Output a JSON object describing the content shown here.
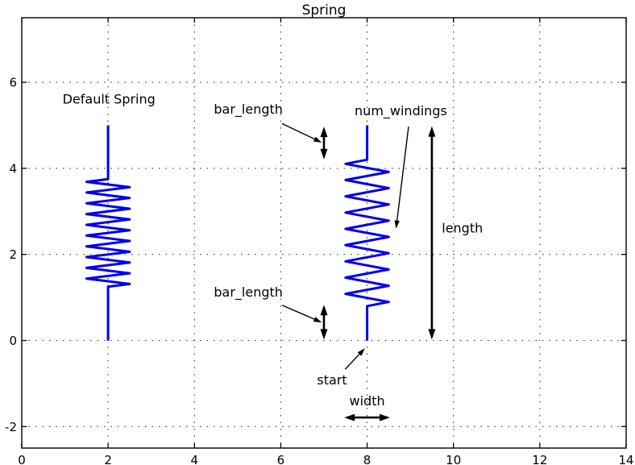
{
  "chart_data": {
    "type": "line",
    "title": "Spring",
    "xlabel": "",
    "ylabel": "",
    "xlim": [
      0,
      14
    ],
    "ylim": [
      -2.5,
      7.5
    ],
    "xtick_values": [
      0,
      2,
      4,
      6,
      8,
      10,
      12,
      14
    ],
    "xtick_labels": [
      "0",
      "2",
      "4",
      "6",
      "8",
      "10",
      "12",
      "14"
    ],
    "ytick_values": [
      -2,
      0,
      2,
      4,
      6
    ],
    "ytick_labels": [
      "-2",
      "0",
      "2",
      "4",
      "6"
    ],
    "grid": "dotted",
    "legend": "none",
    "line_color": "#0000ee",
    "axis_color": "#000000",
    "grid_color": "#333333",
    "springs": [
      {
        "name": "default-spring",
        "start": [
          2,
          0
        ],
        "length": 5,
        "bar_length": 1.25,
        "num_windings": 10,
        "width": 1.0
      },
      {
        "name": "annotated-spring",
        "start": [
          8,
          0
        ],
        "length": 5,
        "bar_length": 0.8,
        "num_windings": 9,
        "width": 1.0
      }
    ],
    "labels": [
      {
        "name": "default-spring-label",
        "text": "Default Spring",
        "x": 2.02,
        "y": 5.51,
        "anchor": "middle"
      },
      {
        "name": "bar-length-top-label",
        "text": "bar_length",
        "x": 4.45,
        "y": 5.27,
        "anchor": "start"
      },
      {
        "name": "num-windings-label",
        "text": "num_windings",
        "x": 7.71,
        "y": 5.23,
        "anchor": "start"
      },
      {
        "name": "length-label",
        "text": "length",
        "x": 9.73,
        "y": 2.51,
        "anchor": "start"
      },
      {
        "name": "bar-length-bottom-label",
        "text": "bar_length",
        "x": 4.45,
        "y": 1.02,
        "anchor": "start"
      },
      {
        "name": "start-label",
        "text": "start",
        "x": 6.84,
        "y": -1.02,
        "anchor": "start"
      },
      {
        "name": "width-label",
        "text": "width",
        "x": 8.0,
        "y": -1.51,
        "anchor": "middle"
      }
    ],
    "dimension_arrows": [
      {
        "name": "bar-length-top-arrow",
        "x1": 7.0,
        "y1": 4.97,
        "x2": 7.0,
        "y2": 4.21
      },
      {
        "name": "bar-length-bottom-arrow",
        "x1": 7.0,
        "y1": 0.83,
        "x2": 7.0,
        "y2": 0.02
      },
      {
        "name": "length-arrow",
        "x1": 9.5,
        "y1": 4.98,
        "x2": 9.5,
        "y2": 0.02
      },
      {
        "name": "width-arrow",
        "x1": 7.47,
        "y1": -1.79,
        "x2": 8.53,
        "y2": -1.79
      }
    ],
    "pointer_arrows": [
      {
        "name": "bar-length-top-pointer",
        "x1": 6.03,
        "y1": 5.04,
        "x2": 6.95,
        "y2": 4.6
      },
      {
        "name": "num-windings-pointer",
        "x1": 8.96,
        "y1": 4.97,
        "x2": 8.67,
        "y2": 2.6
      },
      {
        "name": "bar-length-bottom-pointer",
        "x1": 6.03,
        "y1": 0.82,
        "x2": 6.95,
        "y2": 0.42
      },
      {
        "name": "start-pointer",
        "x1": 7.49,
        "y1": -0.67,
        "x2": 7.95,
        "y2": -0.18
      }
    ]
  }
}
